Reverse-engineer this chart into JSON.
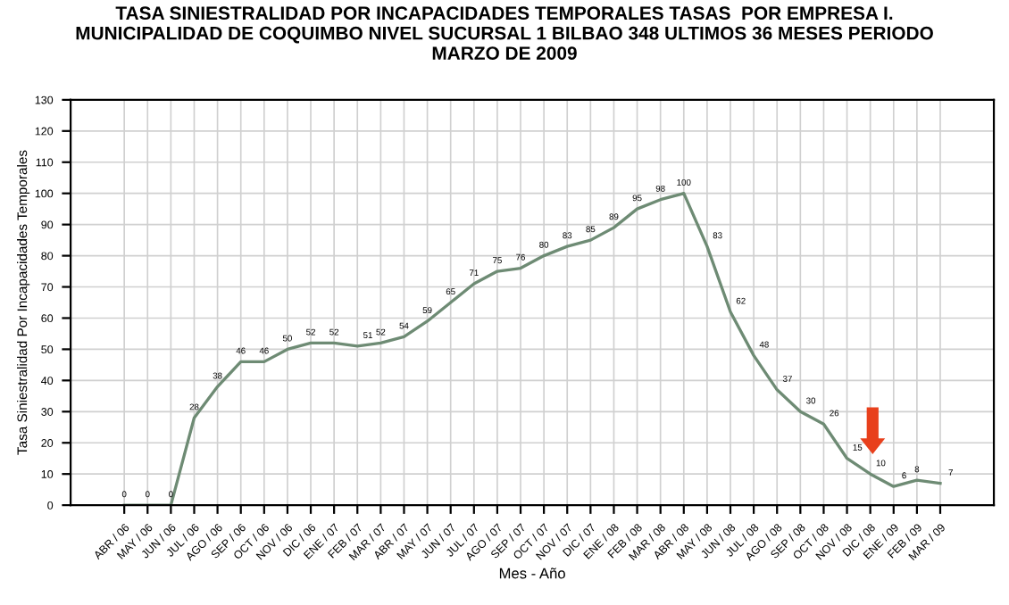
{
  "chart_data": {
    "type": "line",
    "title": "TASA SINIESTRALIDAD POR INCAPACIDADES TEMPORALES TASAS  POR EMPRESA I.\nMUNICIPALIDAD DE COQUIMBO NIVEL SUCURSAL 1 BILBAO 348 ULTIMOS 36 MESES PERIODO\nMARZO DE 2009",
    "xlabel": "Mes - Año",
    "ylabel": "Tasa Siniestralidad Por Incapacidades Temporales",
    "categories": [
      "ABR / 06",
      "MAY / 06",
      "JUN / 06",
      "JUL / 06",
      "AGO / 06",
      "SEP / 06",
      "OCT / 06",
      "NOV / 06",
      "DIC / 06",
      "ENE / 07",
      "FEB / 07",
      "MAR / 07",
      "ABR / 07",
      "MAY / 07",
      "JUN / 07",
      "JUL / 07",
      "AGO / 07",
      "SEP / 07",
      "OCT / 07",
      "NOV / 07",
      "DIC / 07",
      "ENE / 08",
      "FEB / 08",
      "MAR / 08",
      "ABR / 08",
      "MAY / 08",
      "JUN / 08",
      "JUL / 08",
      "AGO / 08",
      "SEP / 08",
      "OCT / 08",
      "NOV / 08",
      "DIC / 08",
      "ENE / 09",
      "FEB / 09",
      "MAR / 09"
    ],
    "series": [
      {
        "color": "#6e8b74",
        "values": [
          0,
          0,
          0,
          28,
          38,
          46,
          46,
          50,
          52,
          52,
          51,
          52,
          54,
          59,
          65,
          71,
          75,
          76,
          80,
          83,
          85,
          89,
          95,
          98,
          100,
          83,
          62,
          48,
          37,
          30,
          26,
          15,
          10,
          6,
          8,
          7
        ]
      }
    ],
    "ylim": [
      0,
      130
    ],
    "yticks": [
      0,
      10,
      20,
      30,
      40,
      50,
      60,
      70,
      80,
      90,
      100,
      110,
      120,
      130
    ],
    "grid": true,
    "data_labels": true,
    "marker": "none",
    "line_style": "solid"
  }
}
